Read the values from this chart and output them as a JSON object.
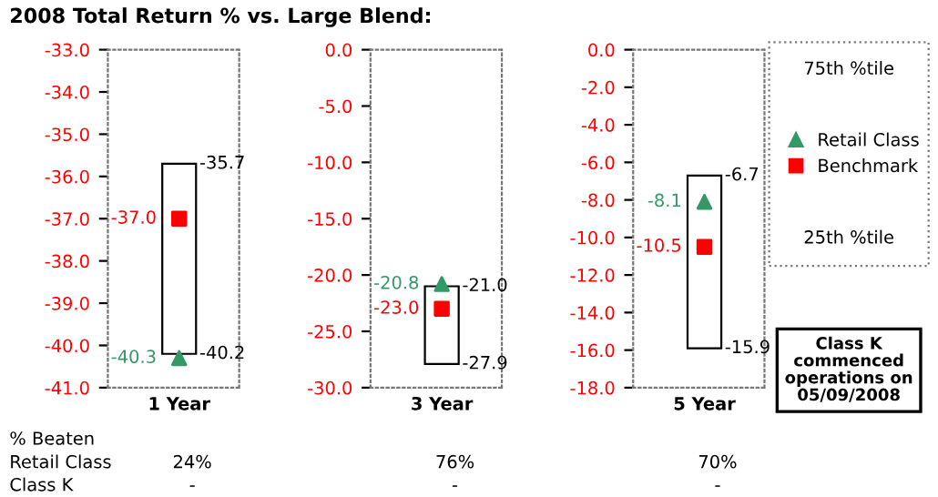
{
  "chart_data": [
    {
      "type": "bar",
      "title": "2008 Total Return % vs. Large Blend:",
      "categories": [
        "1 Year"
      ],
      "ylim": [
        -41,
        -33
      ],
      "yticks": [
        {
          "value": -41,
          "label": "-41.0"
        },
        {
          "value": -40,
          "label": "-40.0"
        },
        {
          "value": -39,
          "label": "-39.0"
        },
        {
          "value": -38,
          "label": "-38.0"
        },
        {
          "value": -37,
          "label": "-37.0"
        },
        {
          "value": -36,
          "label": "-36.0"
        },
        {
          "value": -35,
          "label": "-35.0"
        },
        {
          "value": -34,
          "label": "-34.0"
        },
        {
          "value": -33,
          "label": "-33.0"
        }
      ],
      "series": [
        {
          "type": "bar",
          "color": "#000000",
          "base": [
            -40.2
          ],
          "values": [
            4.5
          ]
        },
        {
          "type": "scatter",
          "color": "#339966",
          "marker": "triangle",
          "values": [
            -40.3
          ],
          "value_labels": [
            "-40.3"
          ]
        },
        {
          "type": "scatter",
          "color": "#ff0000",
          "marker": "square",
          "values": [
            -37.0
          ],
          "value_labels": [
            "-37.0"
          ]
        }
      ],
      "annotations": [
        {
          "text": "-35.7",
          "x": "1 Year",
          "y": -35.7
        },
        {
          "text": "-40.2",
          "x": "1 Year",
          "y": -40.2
        }
      ]
    },
    {
      "type": "bar",
      "categories": [
        "3 Year"
      ],
      "ylim": [
        -30,
        0
      ],
      "yticks": [
        {
          "value": -30,
          "label": "-30.0"
        },
        {
          "value": -25,
          "label": "-25.0"
        },
        {
          "value": -20,
          "label": "-20.0"
        },
        {
          "value": -15,
          "label": "-15.0"
        },
        {
          "value": -10,
          "label": "-10.0"
        },
        {
          "value": -5,
          "label": "-5.0"
        },
        {
          "value": 0,
          "label": "0.0"
        }
      ],
      "series": [
        {
          "type": "bar",
          "color": "#000000",
          "base": [
            -27.9
          ],
          "values": [
            6.9
          ]
        },
        {
          "type": "scatter",
          "color": "#339966",
          "marker": "triangle",
          "values": [
            -20.8
          ],
          "value_labels": [
            "-20.8"
          ]
        },
        {
          "type": "scatter",
          "color": "#ff0000",
          "marker": "square",
          "values": [
            -23.0
          ],
          "value_labels": [
            "-23.0"
          ]
        }
      ],
      "annotations": [
        {
          "text": "-21.0",
          "x": "3 Year",
          "y": -21.0
        },
        {
          "text": "-27.9",
          "x": "3 Year",
          "y": -27.9
        }
      ]
    },
    {
      "type": "bar",
      "categories": [
        "5 Year"
      ],
      "ylim": [
        -18,
        0
      ],
      "yticks": [
        {
          "value": -18,
          "label": "-18.0"
        },
        {
          "value": -16,
          "label": "-16.0"
        },
        {
          "value": -14,
          "label": "-14.0"
        },
        {
          "value": -12,
          "label": "-12.0"
        },
        {
          "value": -10,
          "label": "-10.0"
        },
        {
          "value": -8,
          "label": "-8.0"
        },
        {
          "value": -6,
          "label": "-6.0"
        },
        {
          "value": -4,
          "label": "-4.0"
        },
        {
          "value": -2,
          "label": "-2.0"
        },
        {
          "value": 0,
          "label": "0.0"
        }
      ],
      "legend": "right",
      "series": [
        {
          "type": "bar",
          "color": "#000000",
          "base": [
            -15.9
          ],
          "values": [
            9.2
          ]
        },
        {
          "type": "scatter",
          "name": "Retail Class",
          "color": "#339966",
          "marker": "triangle",
          "values": [
            -8.1
          ],
          "value_labels": [
            "-8.1"
          ]
        },
        {
          "type": "scatter",
          "name": "Benchmark",
          "color": "#ff0000",
          "marker": "square",
          "values": [
            -10.5
          ],
          "value_labels": [
            "-10.5"
          ]
        }
      ],
      "annotations": [
        {
          "text": "-6.7",
          "x": "5 Year",
          "y": -6.7
        },
        {
          "text": "-15.9",
          "x": "5 Year",
          "y": -15.9
        },
        "75th %tile",
        "25th %tile"
      ]
    },
    {
      "type": "other",
      "annotations": [
        "% Beaten",
        "Retail Class",
        "24%",
        "76%",
        "70%",
        "Class K",
        "-",
        "-",
        "-",
        "Class K\ncommenced\noperations on\n05/09/2008"
      ]
    }
  ]
}
